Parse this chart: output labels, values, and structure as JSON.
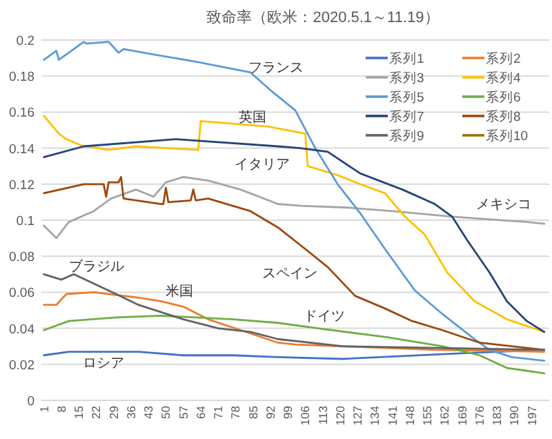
{
  "chart_data": {
    "type": "line",
    "title": "致命率（欧米：2020.5.1～11.19）",
    "xlim": [
      0,
      204
    ],
    "xticks": [
      1,
      8,
      15,
      22,
      29,
      36,
      43,
      50,
      57,
      64,
      71,
      78,
      85,
      92,
      99,
      106,
      113,
      120,
      127,
      134,
      141,
      148,
      155,
      162,
      169,
      176,
      183,
      190,
      197
    ],
    "ylim": [
      0,
      0.2
    ],
    "yticks": [
      0,
      0.02,
      0.04,
      0.06,
      0.08,
      0.1,
      0.12,
      0.14,
      0.16,
      0.18,
      0.2
    ],
    "grid": "y",
    "legend": "top right",
    "marker": "none",
    "line_style": "solid",
    "series": [
      {
        "name": "系列1",
        "color": "#4472c4",
        "x": [
          1,
          11,
          39,
          57,
          77,
          95,
          121,
          167,
          202
        ],
        "values": [
          0.025,
          0.027,
          0.027,
          0.025,
          0.025,
          0.024,
          0.023,
          0.026,
          0.028
        ]
      },
      {
        "name": "系列2",
        "color": "#ed7d31",
        "x": [
          1,
          6,
          10,
          21,
          39,
          48,
          57,
          67,
          80,
          95,
          102,
          158,
          202
        ],
        "values": [
          0.053,
          0.053,
          0.059,
          0.06,
          0.057,
          0.055,
          0.052,
          0.045,
          0.039,
          0.032,
          0.031,
          0.028,
          0.027
        ]
      },
      {
        "name": "系列3",
        "color": "#a5a5a5",
        "x": [
          1,
          6,
          11,
          21,
          28,
          38,
          45,
          50,
          57,
          67,
          80,
          95,
          104,
          123,
          141,
          165,
          195,
          202
        ],
        "values": [
          0.097,
          0.09,
          0.099,
          0.105,
          0.112,
          0.117,
          0.113,
          0.121,
          0.124,
          0.122,
          0.117,
          0.109,
          0.108,
          0.107,
          0.105,
          0.102,
          0.099,
          0.098
        ]
      },
      {
        "name": "系列4",
        "color": "#ffc000",
        "x": [
          1,
          7,
          10,
          16,
          27,
          38,
          63,
          64,
          91,
          106,
          107,
          119,
          128,
          138,
          146,
          154,
          163,
          174,
          187,
          202
        ],
        "values": [
          0.158,
          0.148,
          0.145,
          0.1415,
          0.139,
          0.141,
          0.139,
          0.155,
          0.152,
          0.148,
          0.13,
          0.125,
          0.12,
          0.115,
          0.102,
          0.092,
          0.071,
          0.055,
          0.045,
          0.038
        ]
      },
      {
        "name": "系列5",
        "color": "#5b9bd5",
        "x": [
          1,
          6,
          7,
          11,
          17,
          18,
          27,
          31,
          33,
          45,
          62,
          84,
          93,
          102,
          110,
          119,
          128,
          138,
          150,
          161,
          173,
          180,
          189,
          202
        ],
        "values": [
          0.189,
          0.194,
          0.189,
          0.193,
          0.199,
          0.198,
          0.199,
          0.193,
          0.195,
          0.192,
          0.188,
          0.182,
          0.171,
          0.161,
          0.14,
          0.12,
          0.104,
          0.084,
          0.061,
          0.048,
          0.035,
          0.028,
          0.024,
          0.022
        ]
      },
      {
        "name": "系列6",
        "color": "#70ad47",
        "x": [
          1,
          11,
          30,
          48,
          77,
          95,
          111,
          139,
          161,
          176,
          187,
          202
        ],
        "values": [
          0.039,
          0.044,
          0.046,
          0.047,
          0.045,
          0.043,
          0.04,
          0.035,
          0.03,
          0.025,
          0.018,
          0.015
        ]
      },
      {
        "name": "系列7",
        "color": "#264478",
        "x": [
          1,
          17,
          54,
          95,
          104,
          115,
          128,
          145,
          158,
          165,
          171,
          180,
          187,
          195,
          202
        ],
        "values": [
          0.135,
          0.141,
          0.145,
          0.141,
          0.14,
          0.138,
          0.126,
          0.117,
          0.109,
          0.102,
          0.089,
          0.071,
          0.055,
          0.044,
          0.038
        ]
      },
      {
        "name": "系列8",
        "color": "#9e480e",
        "x": [
          1,
          17,
          22,
          25,
          26,
          27,
          31,
          32,
          33,
          48,
          49,
          50,
          51,
          60,
          61,
          62,
          67,
          84,
          95,
          106,
          115,
          126,
          138,
          149,
          161,
          176,
          202
        ],
        "values": [
          0.115,
          0.12,
          0.12,
          0.12,
          0.113,
          0.121,
          0.121,
          0.124,
          0.112,
          0.109,
          0.109,
          0.118,
          0.11,
          0.111,
          0.117,
          0.111,
          0.112,
          0.105,
          0.096,
          0.084,
          0.074,
          0.058,
          0.051,
          0.044,
          0.039,
          0.032,
          0.028
        ]
      },
      {
        "name": "系列9",
        "color": "#636363",
        "x": [
          1,
          8,
          13,
          30,
          39,
          57,
          71,
          84,
          95,
          121,
          202
        ],
        "values": [
          0.07,
          0.067,
          0.07,
          0.059,
          0.053,
          0.045,
          0.04,
          0.038,
          0.034,
          0.03,
          0.028
        ]
      },
      {
        "name": "系列10",
        "color": "#997300"
      }
    ],
    "annotations": [
      "フランス",
      "英国",
      "イタリア",
      "メキシコ",
      "スペイン",
      "ブラジル",
      "米国",
      "ドイツ",
      "ロシア"
    ]
  }
}
